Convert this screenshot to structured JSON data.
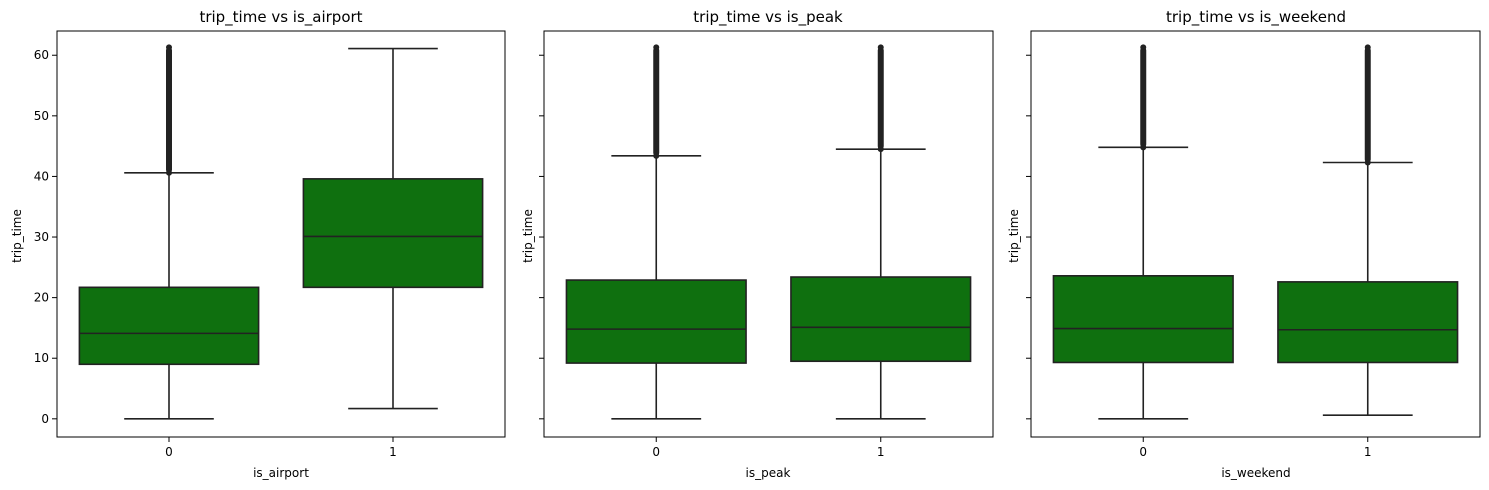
{
  "chart_data": [
    {
      "type": "box",
      "title": "trip_time vs is_airport",
      "xlabel": "is_airport",
      "ylabel": "trip_time",
      "categories": [
        "0",
        "1"
      ],
      "ylim": [
        -3,
        64
      ],
      "yticks": [
        0,
        10,
        20,
        30,
        40,
        50,
        60
      ],
      "show_ytick_labels": true,
      "boxes": [
        {
          "category": "0",
          "whisker_low": 0,
          "q1": 9,
          "median": 14.1,
          "q3": 21.7,
          "whisker_high": 40.6,
          "outliers_from": 40.6,
          "outliers_to": 61.3
        },
        {
          "category": "1",
          "whisker_low": 1.7,
          "q1": 21.7,
          "median": 30.1,
          "q3": 39.6,
          "whisker_high": 61.1,
          "outliers_from": null,
          "outliers_to": null
        }
      ]
    },
    {
      "type": "box",
      "title": "trip_time vs is_peak",
      "xlabel": "is_peak",
      "ylabel": "trip_time",
      "categories": [
        "0",
        "1"
      ],
      "ylim": [
        -3,
        64
      ],
      "yticks": [
        0,
        10,
        20,
        30,
        40,
        50,
        60
      ],
      "show_ytick_labels": false,
      "boxes": [
        {
          "category": "0",
          "whisker_low": 0,
          "q1": 9.2,
          "median": 14.8,
          "q3": 22.9,
          "whisker_high": 43.4,
          "outliers_from": 43.4,
          "outliers_to": 61.3
        },
        {
          "category": "1",
          "whisker_low": 0,
          "q1": 9.5,
          "median": 15.1,
          "q3": 23.4,
          "whisker_high": 44.5,
          "outliers_from": 44.5,
          "outliers_to": 61.3
        }
      ]
    },
    {
      "type": "box",
      "title": "trip_time vs is_weekend",
      "xlabel": "is_weekend",
      "ylabel": "trip_time",
      "categories": [
        "0",
        "1"
      ],
      "ylim": [
        -3,
        64
      ],
      "yticks": [
        0,
        10,
        20,
        30,
        40,
        50,
        60
      ],
      "show_ytick_labels": false,
      "boxes": [
        {
          "category": "0",
          "whisker_low": 0,
          "q1": 9.3,
          "median": 14.9,
          "q3": 23.6,
          "whisker_high": 44.8,
          "outliers_from": 44.8,
          "outliers_to": 61.3
        },
        {
          "category": "1",
          "whisker_low": 0.6,
          "q1": 9.3,
          "median": 14.7,
          "q3": 22.6,
          "whisker_high": 42.3,
          "outliers_from": 42.3,
          "outliers_to": 61.3
        }
      ]
    }
  ],
  "colors": {
    "box_fill": "#0f700f",
    "box_edge": "#222222",
    "axis": "#000000"
  }
}
